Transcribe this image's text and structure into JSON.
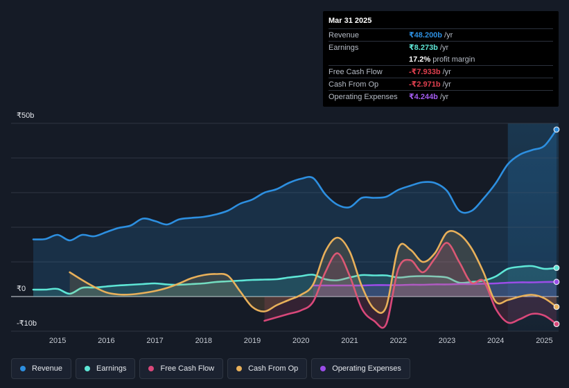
{
  "tooltip": {
    "date": "Mar 31 2025",
    "rows": [
      {
        "label": "Revenue",
        "value": "₹48.200b",
        "unit": "/yr",
        "color": "#2d8fe0"
      },
      {
        "label": "Earnings",
        "value": "₹8.273b",
        "unit": "/yr",
        "color": "#5ee6d6"
      },
      {
        "label": "",
        "value": "17.2%",
        "unit": "profit margin",
        "color": "#ffffff"
      },
      {
        "label": "Free Cash Flow",
        "value": "-₹7.933b",
        "unit": "/yr",
        "color": "#e0404f"
      },
      {
        "label": "Cash From Op",
        "value": "-₹2.971b",
        "unit": "/yr",
        "color": "#e0404f"
      },
      {
        "label": "Operating Expenses",
        "value": "₹4.244b",
        "unit": "/yr",
        "color": "#a35cf0"
      }
    ]
  },
  "legend": [
    {
      "label": "Revenue",
      "color": "#2d8fe0"
    },
    {
      "label": "Earnings",
      "color": "#5ee6d6"
    },
    {
      "label": "Free Cash Flow",
      "color": "#d9487a"
    },
    {
      "label": "Cash From Op",
      "color": "#e8b05a"
    },
    {
      "label": "Operating Expenses",
      "color": "#9b4de8"
    }
  ],
  "chart_data": {
    "type": "line",
    "title": "",
    "xlabel": "",
    "ylabel": "",
    "ylim": [
      -10,
      50
    ],
    "y_tick_labels": [
      {
        "value": 50,
        "label": "₹50b"
      },
      {
        "value": 0,
        "label": "₹0"
      },
      {
        "value": -10,
        "label": "-₹10b"
      }
    ],
    "x_ticks": [
      2015,
      2016,
      2017,
      2018,
      2019,
      2020,
      2021,
      2022,
      2023,
      2024,
      2025
    ],
    "xlim": [
      2014.5,
      2025.25
    ],
    "highlight_start": 2024.25,
    "series": [
      {
        "name": "Revenue",
        "color": "#2d8fe0",
        "fill": true,
        "x": [
          2014.5,
          2014.75,
          2015.0,
          2015.25,
          2015.5,
          2015.75,
          2016.0,
          2016.25,
          2016.5,
          2016.75,
          2017.0,
          2017.25,
          2017.5,
          2017.75,
          2018.0,
          2018.25,
          2018.5,
          2018.75,
          2019.0,
          2019.25,
          2019.5,
          2019.75,
          2020.0,
          2020.25,
          2020.5,
          2020.75,
          2021.0,
          2021.25,
          2021.5,
          2021.75,
          2022.0,
          2022.25,
          2022.5,
          2022.75,
          2023.0,
          2023.25,
          2023.5,
          2023.75,
          2024.0,
          2024.25,
          2024.5,
          2024.75,
          2025.0,
          2025.25
        ],
        "values": [
          16.5,
          16.6,
          17.8,
          16.2,
          17.8,
          17.4,
          18.6,
          19.8,
          20.5,
          22.5,
          21.8,
          20.8,
          22.3,
          22.7,
          23.0,
          23.7,
          24.8,
          26.8,
          28.0,
          30.0,
          31.0,
          32.8,
          34.0,
          34.2,
          29.5,
          26.5,
          25.8,
          28.5,
          28.5,
          28.8,
          30.8,
          32.0,
          33.0,
          32.8,
          30.5,
          24.8,
          24.7,
          28.3,
          32.7,
          38.2,
          41.0,
          42.3,
          43.5,
          48.2
        ]
      },
      {
        "name": "Earnings",
        "color": "#5ee6d6",
        "fill": true,
        "x": [
          2014.5,
          2014.75,
          2015.0,
          2015.25,
          2015.5,
          2015.75,
          2016.0,
          2016.25,
          2016.5,
          2016.75,
          2017.0,
          2017.25,
          2017.5,
          2017.75,
          2018.0,
          2018.25,
          2018.5,
          2018.75,
          2019.0,
          2019.25,
          2019.5,
          2019.75,
          2020.0,
          2020.25,
          2020.5,
          2020.75,
          2021.0,
          2021.25,
          2021.5,
          2021.75,
          2022.0,
          2022.25,
          2022.5,
          2022.75,
          2023.0,
          2023.25,
          2023.5,
          2023.75,
          2024.0,
          2024.25,
          2024.5,
          2024.75,
          2025.0,
          2025.25
        ],
        "values": [
          2.0,
          2.0,
          2.2,
          0.8,
          2.5,
          2.6,
          2.9,
          3.2,
          3.4,
          3.6,
          3.8,
          3.5,
          3.4,
          3.6,
          3.8,
          4.2,
          4.4,
          4.6,
          4.8,
          4.9,
          5.0,
          5.5,
          5.9,
          6.3,
          5.0,
          4.7,
          5.5,
          6.2,
          6.1,
          6.1,
          5.5,
          5.8,
          5.9,
          5.8,
          5.5,
          4.0,
          4.2,
          4.6,
          5.8,
          8.0,
          8.6,
          8.8,
          8.0,
          8.27
        ]
      },
      {
        "name": "Free Cash Flow",
        "color": "#d9487a",
        "fill": true,
        "x": [
          2019.25,
          2019.5,
          2019.75,
          2020.0,
          2020.25,
          2020.5,
          2020.75,
          2021.0,
          2021.25,
          2021.5,
          2021.75,
          2022.0,
          2022.25,
          2022.5,
          2022.75,
          2023.0,
          2023.25,
          2023.5,
          2023.75,
          2024.0,
          2024.25,
          2024.5,
          2024.75,
          2025.0,
          2025.25
        ],
        "values": [
          -7.0,
          -6.0,
          -5.0,
          -4.0,
          -1.5,
          7.0,
          12.5,
          6.0,
          -3.5,
          -7.0,
          -8.0,
          8.0,
          10.5,
          7.0,
          11.0,
          15.5,
          10.0,
          4.0,
          4.5,
          -3.5,
          -7.5,
          -6.5,
          -5.0,
          -5.5,
          -7.93
        ]
      },
      {
        "name": "Cash From Op",
        "color": "#e8b05a",
        "fill": true,
        "x": [
          2015.25,
          2015.5,
          2015.75,
          2016.0,
          2016.25,
          2016.5,
          2016.75,
          2017.0,
          2017.25,
          2017.5,
          2017.75,
          2018.0,
          2018.25,
          2018.5,
          2018.75,
          2019.0,
          2019.25,
          2019.5,
          2019.75,
          2020.0,
          2020.25,
          2020.5,
          2020.75,
          2021.0,
          2021.25,
          2021.5,
          2021.75,
          2022.0,
          2022.25,
          2022.5,
          2022.75,
          2023.0,
          2023.25,
          2023.5,
          2023.75,
          2024.0,
          2024.25,
          2024.5,
          2024.75,
          2025.0,
          2025.25
        ],
        "values": [
          7.0,
          4.8,
          2.8,
          1.2,
          0.6,
          0.6,
          1.0,
          1.6,
          2.5,
          3.8,
          5.3,
          6.2,
          6.5,
          6.0,
          1.5,
          -3.0,
          -4.3,
          -2.5,
          -1.0,
          0.5,
          3.5,
          13.0,
          17.0,
          13.0,
          3.0,
          -3.5,
          -3.0,
          14.0,
          13.5,
          10.0,
          12.5,
          18.5,
          18.0,
          14.0,
          7.0,
          -1.5,
          -1.0,
          0.0,
          0.5,
          -0.5,
          -2.97
        ]
      },
      {
        "name": "Operating Expenses",
        "color": "#9b4de8",
        "fill": true,
        "x": [
          2020.25,
          2020.5,
          2020.75,
          2021.0,
          2021.25,
          2021.5,
          2021.75,
          2022.0,
          2022.25,
          2022.5,
          2022.75,
          2023.0,
          2023.25,
          2023.5,
          2023.75,
          2024.0,
          2024.25,
          2024.5,
          2024.75,
          2025.0,
          2025.25
        ],
        "values": [
          3.2,
          3.2,
          3.2,
          3.2,
          3.2,
          3.3,
          3.3,
          3.3,
          3.4,
          3.4,
          3.5,
          3.5,
          3.6,
          3.6,
          3.7,
          3.8,
          4.0,
          4.1,
          4.1,
          4.2,
          4.24
        ]
      }
    ]
  }
}
